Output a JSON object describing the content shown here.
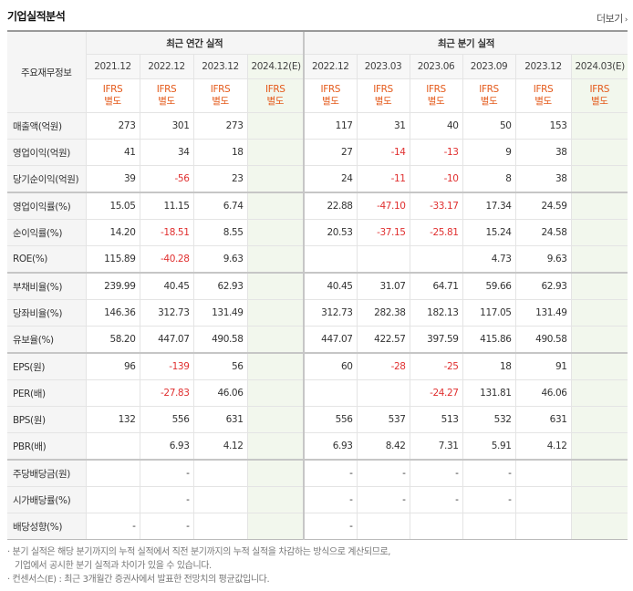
{
  "header": {
    "title": "기업실적분석",
    "more_label": "더보기",
    "more_arrow": "›"
  },
  "table": {
    "row_header_label": "주요재무정보",
    "groups": {
      "annual": "최근 연간 실적",
      "quarterly": "최근 분기 실적"
    },
    "periods": [
      "2021.12",
      "2022.12",
      "2023.12",
      "2024.12(E)",
      "2022.12",
      "2023.03",
      "2023.06",
      "2023.09",
      "2023.12",
      "2024.03(E)"
    ],
    "basis": [
      {
        "a": "IFRS",
        "b": "별도"
      },
      {
        "a": "IFRS",
        "b": "별도"
      },
      {
        "a": "IFRS",
        "b": "별도"
      },
      {
        "a": "IFRS",
        "b": "별도"
      },
      {
        "a": "IFRS",
        "b": "별도"
      },
      {
        "a": "IFRS",
        "b": "별도"
      },
      {
        "a": "IFRS",
        "b": "별도"
      },
      {
        "a": "IFRS",
        "b": "별도"
      },
      {
        "a": "IFRS",
        "b": "별도"
      },
      {
        "a": "IFRS",
        "b": "별도"
      }
    ],
    "rows": [
      {
        "label": "매출액(억원)",
        "values": [
          "273",
          "301",
          "273",
          "",
          "117",
          "31",
          "40",
          "50",
          "153",
          ""
        ]
      },
      {
        "label": "영업이익(억원)",
        "values": [
          "41",
          "34",
          "18",
          "",
          "27",
          "-14",
          "-13",
          "9",
          "38",
          ""
        ]
      },
      {
        "label": "당기순이익(억원)",
        "values": [
          "39",
          "-56",
          "23",
          "",
          "24",
          "-11",
          "-10",
          "8",
          "38",
          ""
        ]
      },
      {
        "label": "영업이익률(%)",
        "values": [
          "15.05",
          "11.15",
          "6.74",
          "",
          "22.88",
          "-47.10",
          "-33.17",
          "17.34",
          "24.59",
          ""
        ]
      },
      {
        "label": "순이익률(%)",
        "values": [
          "14.20",
          "-18.51",
          "8.55",
          "",
          "20.53",
          "-37.15",
          "-25.81",
          "15.24",
          "24.58",
          ""
        ]
      },
      {
        "label": "ROE(%)",
        "values": [
          "115.89",
          "-40.28",
          "9.63",
          "",
          "",
          "",
          "",
          "4.73",
          "9.63",
          ""
        ]
      },
      {
        "label": "부채비율(%)",
        "values": [
          "239.99",
          "40.45",
          "62.93",
          "",
          "40.45",
          "31.07",
          "64.71",
          "59.66",
          "62.93",
          ""
        ]
      },
      {
        "label": "당좌비율(%)",
        "values": [
          "146.36",
          "312.73",
          "131.49",
          "",
          "312.73",
          "282.38",
          "182.13",
          "117.05",
          "131.49",
          ""
        ]
      },
      {
        "label": "유보율(%)",
        "values": [
          "58.20",
          "447.07",
          "490.58",
          "",
          "447.07",
          "422.57",
          "397.59",
          "415.86",
          "490.58",
          ""
        ]
      },
      {
        "label": "EPS(원)",
        "values": [
          "96",
          "-139",
          "56",
          "",
          "60",
          "-28",
          "-25",
          "18",
          "91",
          ""
        ]
      },
      {
        "label": "PER(배)",
        "values": [
          "",
          "-27.83",
          "46.06",
          "",
          "",
          "",
          "-24.27",
          "131.81",
          "46.06",
          ""
        ]
      },
      {
        "label": "BPS(원)",
        "values": [
          "132",
          "556",
          "631",
          "",
          "556",
          "537",
          "513",
          "532",
          "631",
          ""
        ]
      },
      {
        "label": "PBR(배)",
        "values": [
          "",
          "6.93",
          "4.12",
          "",
          "6.93",
          "8.42",
          "7.31",
          "5.91",
          "4.12",
          ""
        ]
      },
      {
        "label": "주당배당금(원)",
        "values": [
          "",
          "-",
          "",
          "",
          "-",
          "-",
          "-",
          "-",
          "",
          ""
        ]
      },
      {
        "label": "시가배당률(%)",
        "values": [
          "",
          "-",
          "",
          "",
          "-",
          "-",
          "-",
          "-",
          "",
          ""
        ]
      },
      {
        "label": "배당성향(%)",
        "values": [
          "-",
          "-",
          "",
          "",
          "-",
          "",
          "",
          "",
          "",
          ""
        ]
      }
    ]
  },
  "notes": {
    "line1": "· 분기 실적은 해당 분기까지의 누적 실적에서 직전 분기까지의 누적 실적을 차감하는 방식으로 계산되므로,",
    "line1b": "기업에서 공시한 분기 실적과 차이가 있을 수 있습니다.",
    "line2": "· 컨센서스(E) : 최근 3개월간 증권사에서 발표한 전망치의 평균값입니다."
  }
}
